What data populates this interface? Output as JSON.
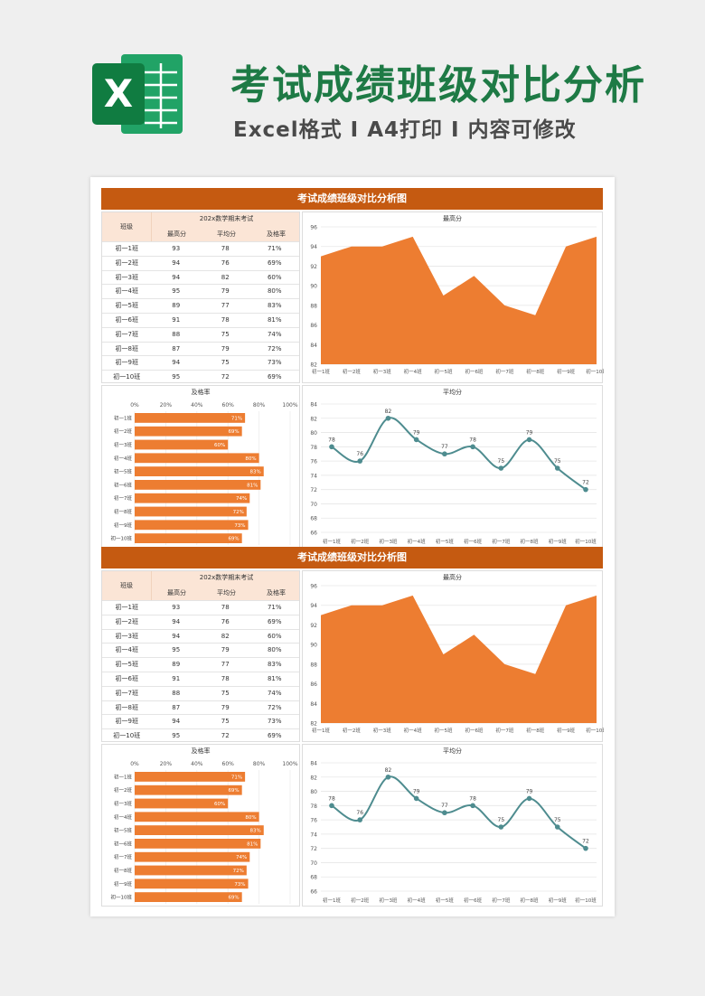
{
  "header": {
    "logo_letter": "X",
    "title": "考试成绩班级对比分析",
    "subtitle": "Excel格式 I A4打印 I 内容可修改"
  },
  "colors": {
    "title_green": "#1e7a45",
    "accent_orange": "#c55a11",
    "fill_orange": "#ed7d31",
    "line_teal": "#4e8c8f",
    "header_peach": "#fbe5d6"
  },
  "block": {
    "title": "考试成绩班级对比分析图",
    "table": {
      "class_header": "班级",
      "exam_header": "202x数学期末考试",
      "columns": [
        "最高分",
        "平均分",
        "及格率"
      ],
      "rows": [
        [
          "初一1班",
          "93",
          "78",
          "71%"
        ],
        [
          "初一2班",
          "94",
          "76",
          "69%"
        ],
        [
          "初一3班",
          "94",
          "82",
          "60%"
        ],
        [
          "初一4班",
          "95",
          "79",
          "80%"
        ],
        [
          "初一5班",
          "89",
          "77",
          "83%"
        ],
        [
          "初一6班",
          "91",
          "78",
          "81%"
        ],
        [
          "初一7班",
          "88",
          "75",
          "74%"
        ],
        [
          "初一8班",
          "87",
          "79",
          "72%"
        ],
        [
          "初一9班",
          "94",
          "75",
          "73%"
        ],
        [
          "初一10班",
          "95",
          "72",
          "69%"
        ]
      ]
    }
  },
  "chart_data": [
    {
      "type": "area",
      "title": "最高分",
      "categories": [
        "初一1班",
        "初一2班",
        "初一3班",
        "初一4班",
        "初一5班",
        "初一6班",
        "初一7班",
        "初一8班",
        "初一9班",
        "初一10班"
      ],
      "values": [
        93,
        94,
        94,
        95,
        89,
        91,
        88,
        87,
        94,
        95
      ],
      "ylim": [
        82,
        96
      ],
      "yticks": [
        82,
        84,
        86,
        88,
        90,
        92,
        94,
        96
      ],
      "grid": true
    },
    {
      "type": "bar",
      "orientation": "horizontal",
      "title": "及格率",
      "categories": [
        "初一1班",
        "初一2班",
        "初一3班",
        "初一4班",
        "初一5班",
        "初一6班",
        "初一7班",
        "初一8班",
        "初一9班",
        "初一10班"
      ],
      "values": [
        71,
        69,
        60,
        80,
        83,
        81,
        74,
        72,
        73,
        69
      ],
      "value_labels": [
        "71%",
        "69%",
        "60%",
        "80%",
        "83%",
        "81%",
        "74%",
        "72%",
        "73%",
        "69%"
      ],
      "xlim": [
        0,
        100
      ],
      "xticks": [
        "0%",
        "20%",
        "40%",
        "60%",
        "80%",
        "100%"
      ]
    },
    {
      "type": "line",
      "title": "平均分",
      "categories": [
        "初一1班",
        "初一2班",
        "初一3班",
        "初一4班",
        "初一5班",
        "初一6班",
        "初一7班",
        "初一8班",
        "初一9班",
        "初一10班"
      ],
      "values": [
        78,
        76,
        82,
        79,
        77,
        78,
        75,
        79,
        75,
        72
      ],
      "ylim": [
        66,
        84
      ],
      "yticks": [
        66,
        68,
        70,
        72,
        74,
        76,
        78,
        80,
        82,
        84
      ],
      "smooth": true,
      "grid": true
    }
  ]
}
